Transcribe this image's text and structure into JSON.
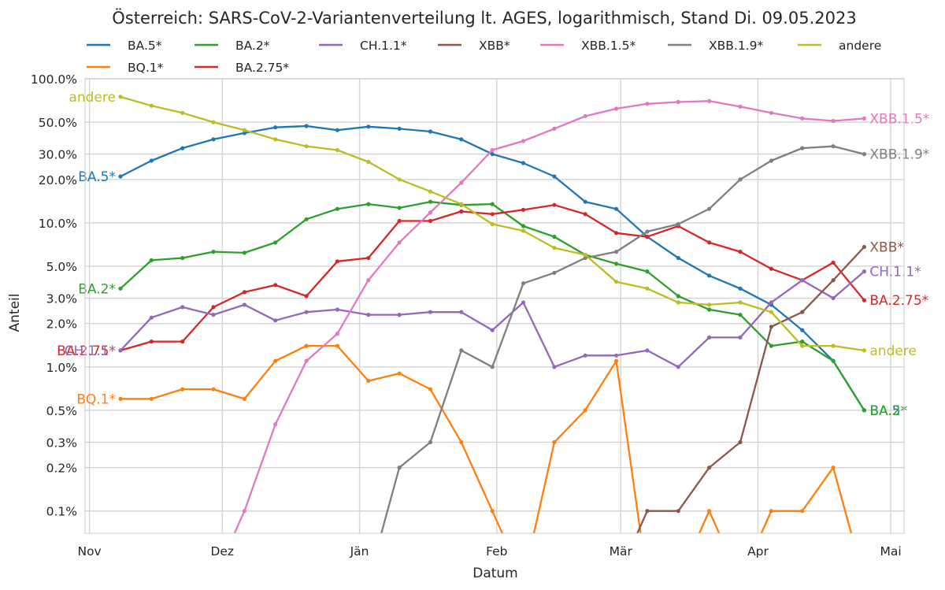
{
  "chart_data": {
    "type": "line",
    "title": "Österreich: SARS-CoV-2-Variantenverteilung lt. AGES, logarithmisch, Stand Di. 09.05.2023",
    "xlabel": "Datum",
    "ylabel": "Anteil",
    "yscale": "log",
    "ylim": [
      0.07,
      100
    ],
    "xlim": [
      "2022-10-31",
      "2023-05-04"
    ],
    "grid": true,
    "legend_position": "top",
    "x_ticks": [
      {
        "date": "2022-11-01",
        "label": "Nov"
      },
      {
        "date": "2022-12-01",
        "label": "Dez"
      },
      {
        "date": "2023-01-01",
        "label": "Jän"
      },
      {
        "date": "2023-02-01",
        "label": "Feb"
      },
      {
        "date": "2023-03-01",
        "label": "Mär"
      },
      {
        "date": "2023-04-01",
        "label": "Apr"
      },
      {
        "date": "2023-05-01",
        "label": "Mai"
      }
    ],
    "y_ticks": [
      {
        "value": 100,
        "label": "100.0%"
      },
      {
        "value": 50,
        "label": "50.0%"
      },
      {
        "value": 30,
        "label": "30.0%"
      },
      {
        "value": 20,
        "label": "20.0%"
      },
      {
        "value": 10,
        "label": "10.0%"
      },
      {
        "value": 5,
        "label": "5.0%"
      },
      {
        "value": 3,
        "label": "3.0%"
      },
      {
        "value": 2,
        "label": "2.0%"
      },
      {
        "value": 1,
        "label": "1.0%"
      },
      {
        "value": 0.5,
        "label": "0.5%"
      },
      {
        "value": 0.3,
        "label": "0.3%"
      },
      {
        "value": 0.2,
        "label": "0.2%"
      },
      {
        "value": 0.1,
        "label": "0.1%"
      }
    ],
    "x": [
      "2022-11-08",
      "2022-11-15",
      "2022-11-22",
      "2022-11-29",
      "2022-12-06",
      "2022-12-13",
      "2022-12-20",
      "2022-12-27",
      "2023-01-03",
      "2023-01-10",
      "2023-01-17",
      "2023-01-24",
      "2023-01-31",
      "2023-02-07",
      "2023-02-14",
      "2023-02-21",
      "2023-02-28",
      "2023-03-07",
      "2023-03-14",
      "2023-03-21",
      "2023-03-28",
      "2023-04-04",
      "2023-04-11",
      "2023-04-18",
      "2023-04-25"
    ],
    "series": [
      {
        "name": "BA.5*",
        "color": "#1f77b4",
        "end_label": "BA.5*",
        "label_side": "left",
        "values": [
          21,
          27,
          33,
          38,
          42,
          46,
          47,
          44,
          46.5,
          45,
          43,
          38,
          30,
          26,
          21,
          14,
          12.5,
          8,
          5.7,
          4.3,
          3.5,
          2.7,
          1.8,
          1.1,
          0.5
        ]
      },
      {
        "name": "BQ.1*",
        "color": "#ff7f0e",
        "end_label": "BQ.1*",
        "label_side": "left",
        "values": [
          0.6,
          0.6,
          0.7,
          0.7,
          0.6,
          1.1,
          1.4,
          1.4,
          0.8,
          0.9,
          0.7,
          0.3,
          0.1,
          0,
          0.3,
          0.5,
          1.1,
          0,
          0,
          0.1,
          0,
          0.1,
          0.1,
          0.2,
          0
        ]
      },
      {
        "name": "BA.2*",
        "color": "#2ca02c",
        "end_label": "BA.2*",
        "label_side": "left",
        "values": [
          3.5,
          5.5,
          5.7,
          6.3,
          6.2,
          7.3,
          10.6,
          12.5,
          13.5,
          12.7,
          14,
          13.3,
          13.5,
          9.5,
          8,
          6,
          5.2,
          4.6,
          3.1,
          2.5,
          2.3,
          1.4,
          1.5,
          1.1,
          0.5
        ]
      },
      {
        "name": "BA.2.75*",
        "color": "#d62728",
        "end_label": "BA.2.75*",
        "label_side": "left",
        "values": [
          1.3,
          1.5,
          1.5,
          2.6,
          3.3,
          3.7,
          3.1,
          5.4,
          5.7,
          10.3,
          10.3,
          12,
          11.5,
          12.3,
          13.3,
          11.5,
          8.5,
          8,
          9.5,
          7.3,
          6.3,
          4.8,
          4,
          5.3,
          2.9
        ]
      },
      {
        "name": "CH.1.1*",
        "color": "#9467bd",
        "end_label": "CH.1.1*",
        "label_side": "left",
        "values": [
          1.3,
          2.2,
          2.6,
          2.3,
          2.7,
          2.1,
          2.4,
          2.5,
          2.3,
          2.3,
          2.4,
          2.4,
          1.8,
          2.8,
          1,
          1.2,
          1.2,
          1.3,
          1,
          1.6,
          1.6,
          2.8,
          4,
          3,
          4.6
        ]
      },
      {
        "name": "XBB*",
        "color": "#8c564b",
        "end_label": "XBB*",
        "label_side": "right",
        "values": [
          0,
          0,
          0,
          0,
          0,
          0,
          0,
          0,
          0,
          0,
          0,
          0,
          0,
          0,
          0,
          0,
          0,
          0.1,
          0.1,
          0.2,
          0.3,
          1.9,
          2.4,
          4,
          6.8
        ]
      },
      {
        "name": "XBB.1.5*",
        "color": "#e377c2",
        "end_label": "XBB.1.5*",
        "label_side": "right",
        "values": [
          0,
          0,
          0,
          0,
          0.1,
          0.4,
          1.1,
          1.7,
          4,
          7.3,
          11.8,
          19,
          32,
          37,
          45,
          55,
          62,
          67,
          69,
          70,
          64,
          58,
          53,
          51,
          53
        ]
      },
      {
        "name": "XBB.1.9*",
        "color": "#7f7f7f",
        "end_label": "XBB.1.9*",
        "label_side": "right",
        "values": [
          0,
          0,
          0,
          0,
          0,
          0,
          0,
          0,
          0,
          0.2,
          0.3,
          1.3,
          1,
          3.8,
          4.5,
          5.7,
          6.3,
          8.7,
          9.8,
          12.5,
          20,
          27,
          33,
          34,
          30
        ]
      },
      {
        "name": "andere",
        "color": "#bcbd22",
        "end_label": "andere",
        "label_side": "left",
        "values": [
          75,
          65,
          58,
          50,
          44,
          38,
          34,
          32,
          26.5,
          20,
          16.5,
          13.5,
          9.8,
          8.8,
          6.7,
          6,
          3.9,
          3.5,
          2.8,
          2.7,
          2.8,
          2.4,
          1.4,
          1.4,
          1.3
        ]
      }
    ],
    "legend_rows": [
      [
        "BA.5*",
        "BA.2*",
        "CH.1.1*",
        "XBB*",
        "XBB.1.5*",
        "XBB.1.9*",
        "andere"
      ],
      [
        "BQ.1*",
        "BA.2.75*"
      ]
    ]
  }
}
